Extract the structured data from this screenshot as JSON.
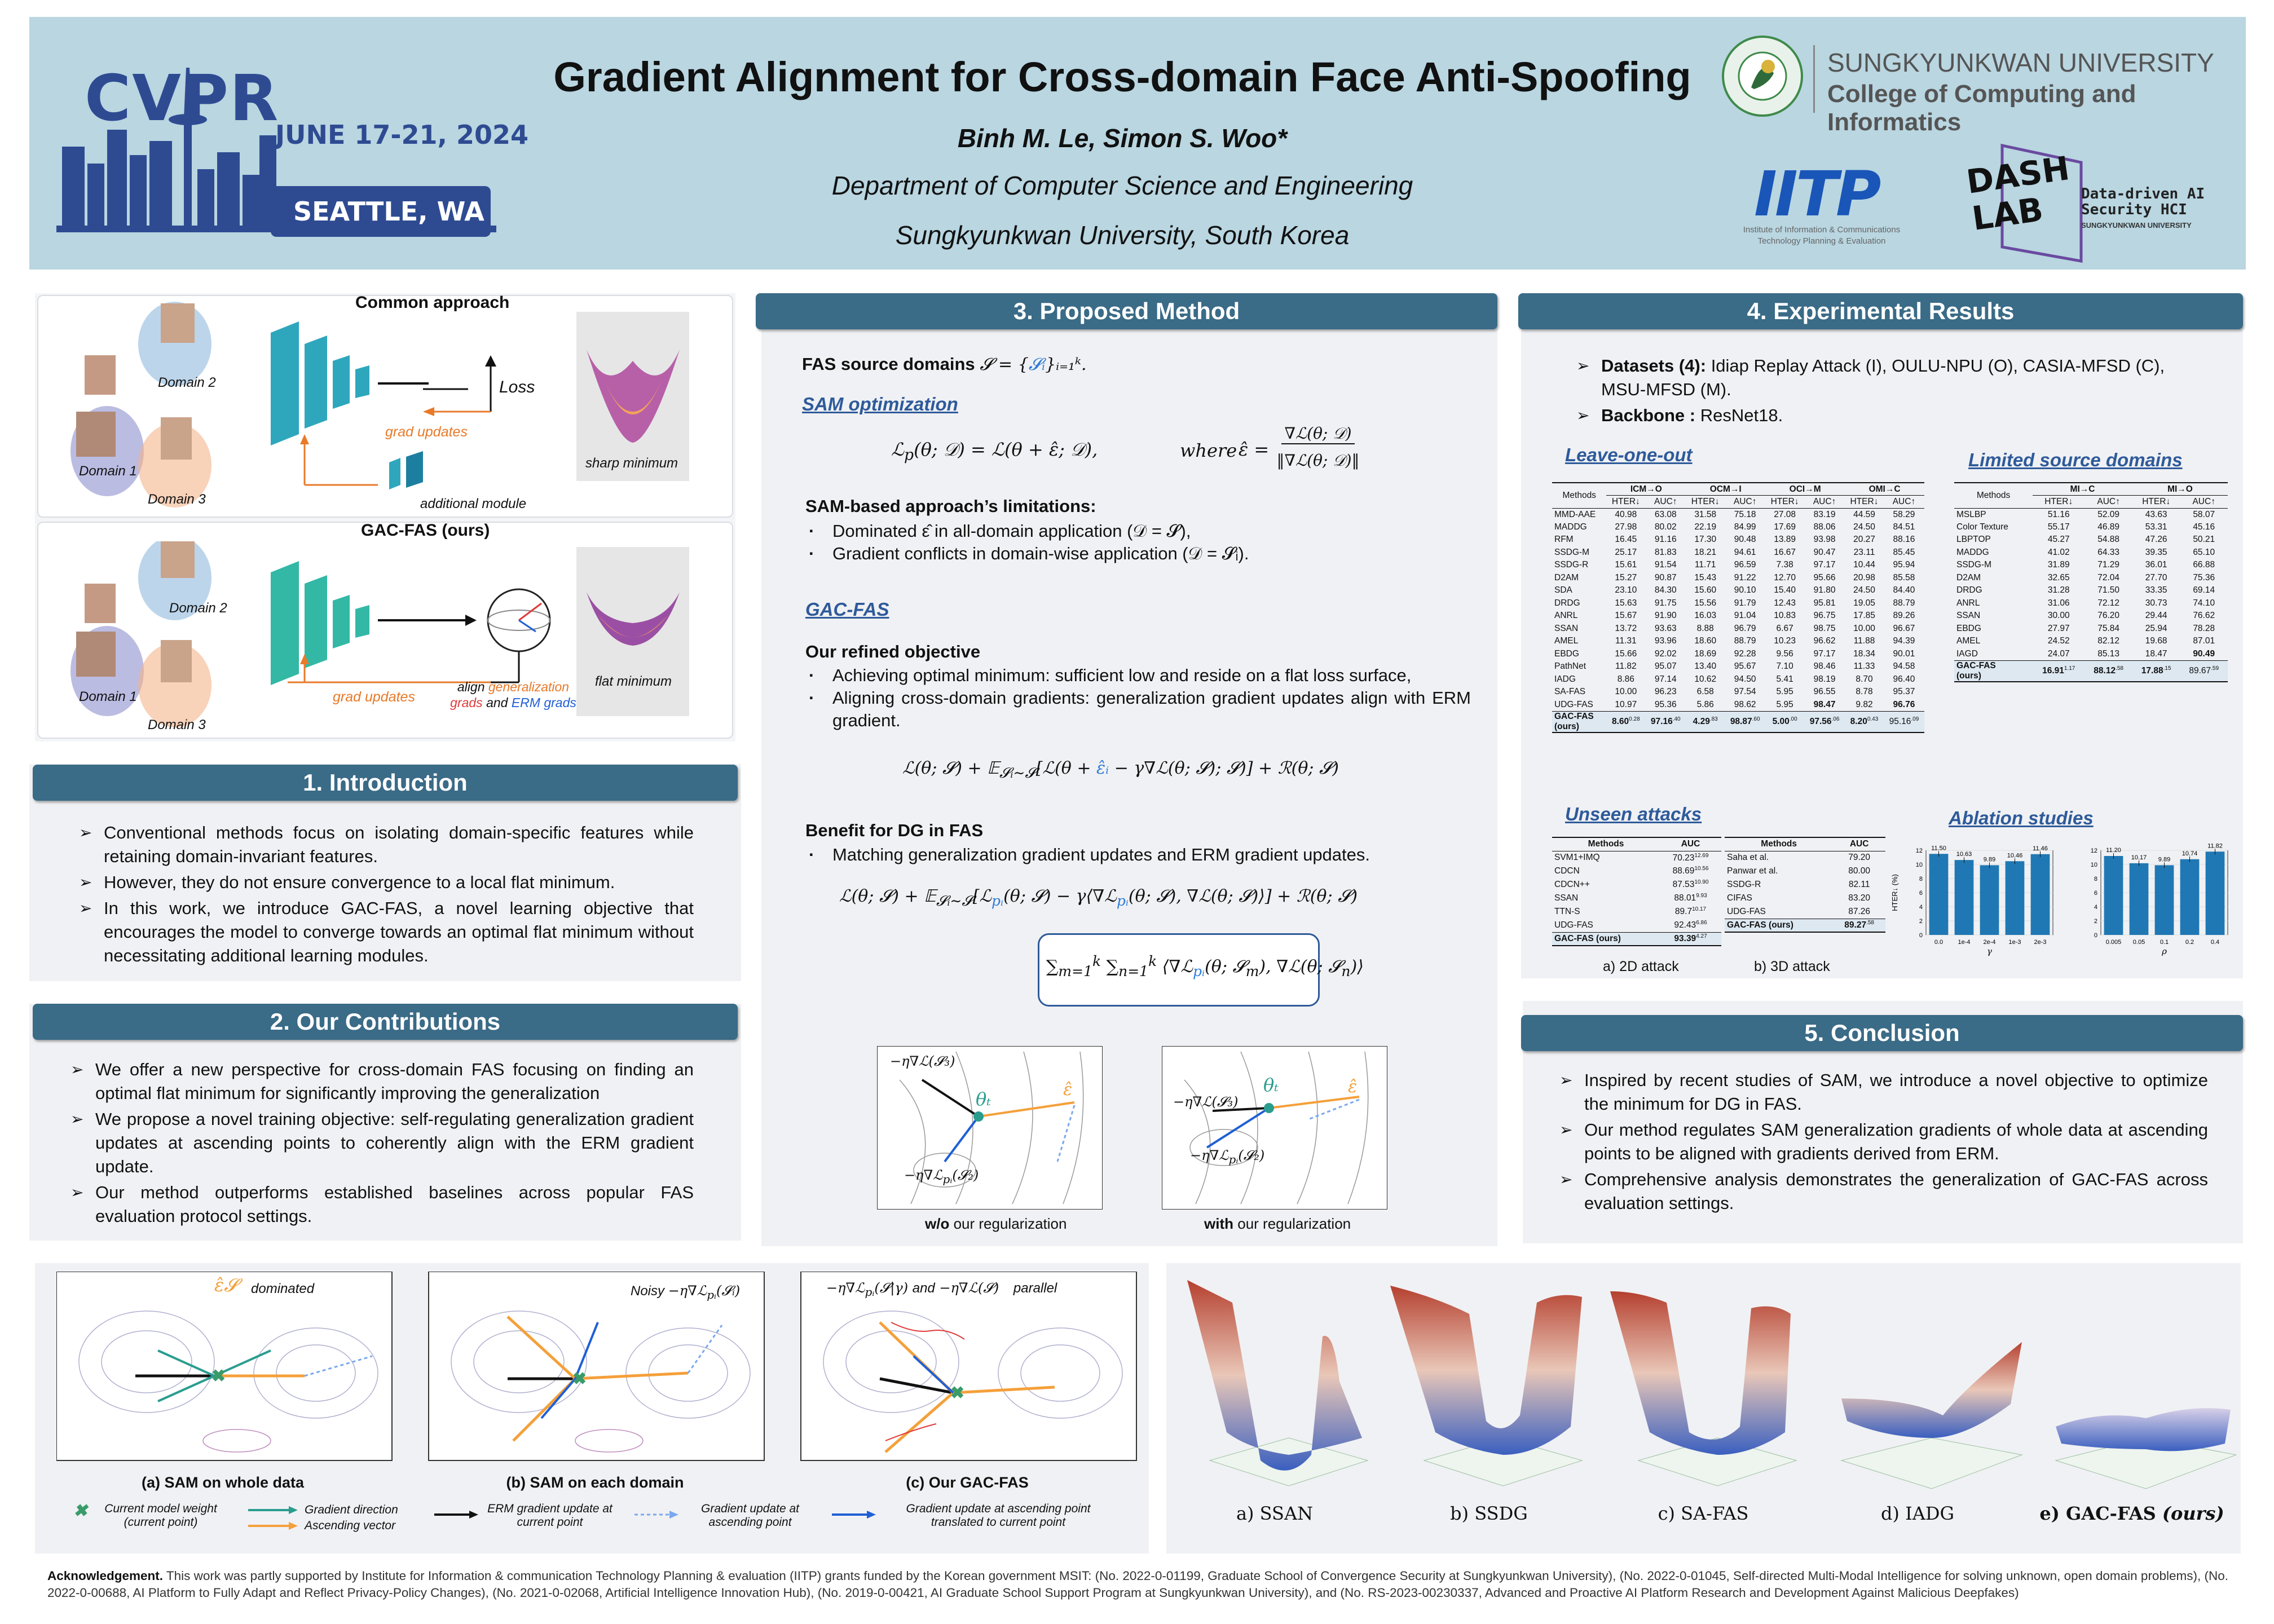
{
  "header": {
    "cvpr": "CVPR",
    "cvpr_dates": "JUNE 17-21, 2024",
    "cvpr_city": "SEATTLE, WA",
    "title": "Gradient Alignment for Cross-domain Face Anti-Spoofing",
    "authors": "Binh M. Le, Simon S. Woo*",
    "department": "Department of Computer Science and Engineering",
    "university": "Sungkyunkwan University, South Korea",
    "skku_name": "SUNGKYUNKWAN UNIVERSITY",
    "skku_college": "College of Computing and Informatics",
    "iitp_logo": "IITP",
    "iitp_sub": "Institute of Information & Communications Technology Planning & Evaluation",
    "dash_logo": "DASH LAB",
    "dash_sub": "Data-driven AI Security HCI",
    "dash_sub2": "SUNGKYUNKWAN UNIVERSITY"
  },
  "overview": {
    "common_title": "Common approach",
    "ours_title": "GAC-FAS (ours)",
    "domain1": "Domain 1",
    "domain2": "Domain 2",
    "domain3": "Domain 3",
    "loss": "Loss",
    "grad_updates": "grad updates",
    "additional_module": "additional module",
    "sharp_minimum": "sharp minimum",
    "flat_minimum": "flat minimum",
    "align_prefix": "align",
    "align_gen": "generalization",
    "align_grads": "grads",
    "align_and": "and",
    "align_erm": "ERM grads"
  },
  "intro": {
    "heading": "1. Introduction",
    "bullets": [
      "Conventional methods focus on isolating domain-specific features while retaining domain-invariant features.",
      "However, they do not ensure convergence to a local flat minimum.",
      "In this work, we introduce GAC-FAS, a novel learning objective that encourages the model to converge towards an optimal flat minimum without necessitating additional learning modules."
    ]
  },
  "contrib": {
    "heading": "2. Our Contributions",
    "bullets": [
      "We offer a new perspective for cross-domain FAS focusing on finding an optimal flat minimum for significantly improving the generalization",
      "We propose a novel training objective: self-regulating generalization gradient updates at ascending points to coherently align with the ERM gradient update.",
      "Our method outperforms established baselines across popular FAS evaluation protocol settings."
    ]
  },
  "method": {
    "heading": "3. Proposed Method",
    "fas_source": "FAS source domains",
    "sam_opt": "SAM optimization",
    "where": "where",
    "limitations_head": "SAM-based approach’s limitations:",
    "limitations": [
      "Dominated ε̂ in all-domain application (𝒟 = 𝓢),",
      "Gradient conflicts in domain-wise application (𝒟 = 𝓢ᵢ)."
    ],
    "gacfas_head": "GAC-FAS",
    "refined_head": "Our refined objective",
    "refined": [
      "Achieving optimal minimum: sufficient low and reside on a flat loss surface,",
      "Aligning cross-domain gradients:  generalization gradient updates align with ERM gradient."
    ],
    "benefit_head": "Benefit for DG in FAS",
    "benefit": [
      "Matching generalization gradient updates and ERM gradient updates."
    ],
    "wo_reg": "w/o our regularization",
    "with_reg": "with our regularization",
    "wo_bold": "w/o",
    "with_bold": "with"
  },
  "results": {
    "heading": "4. Experimental Results",
    "datasets_label": "Datasets (4):",
    "datasets": "Idiap Replay Attack (I), OULU-NPU (O), CASIA-MFSD (C), MSU-MFSD (M).",
    "backbone_label": "Backbone :",
    "backbone": "ResNet18.",
    "loo_head": "Leave-one-out",
    "lsd_head": "Limited source domains",
    "unseen_head": "Unseen attacks",
    "ablation_head": "Ablation studies",
    "cap_2d": "a) 2D attack",
    "cap_3d": "b) 3D attack"
  },
  "loo_table": {
    "groups": [
      "ICM→O",
      "OCM→I",
      "OCI→M",
      "OMI→C"
    ],
    "methods_label": "Methods",
    "sub": [
      "HTER↓",
      "AUC↑"
    ],
    "rows": [
      [
        "MMD-AAE",
        "40.98",
        "63.08",
        "31.58",
        "75.18",
        "27.08",
        "83.19",
        "44.59",
        "58.29"
      ],
      [
        "MADDG",
        "27.98",
        "80.02",
        "22.19",
        "84.99",
        "17.69",
        "88.06",
        "24.50",
        "84.51"
      ],
      [
        "RFM",
        "16.45",
        "91.16",
        "17.30",
        "90.48",
        "13.89",
        "93.98",
        "20.27",
        "88.16"
      ],
      [
        "SSDG-M",
        "25.17",
        "81.83",
        "18.21",
        "94.61",
        "16.67",
        "90.47",
        "23.11",
        "85.45"
      ],
      [
        "SSDG-R",
        "15.61",
        "91.54",
        "11.71",
        "96.59",
        "7.38",
        "97.17",
        "10.44",
        "95.94"
      ],
      [
        "D2AM",
        "15.27",
        "90.87",
        "15.43",
        "91.22",
        "12.70",
        "95.66",
        "20.98",
        "85.58"
      ],
      [
        "SDA",
        "23.10",
        "84.30",
        "15.60",
        "90.10",
        "15.40",
        "91.80",
        "24.50",
        "84.40"
      ],
      [
        "DRDG",
        "15.63",
        "91.75",
        "15.56",
        "91.79",
        "12.43",
        "95.81",
        "19.05",
        "88.79"
      ],
      [
        "ANRL",
        "15.67",
        "91.90",
        "16.03",
        "91.04",
        "10.83",
        "96.75",
        "17.85",
        "89.26"
      ],
      [
        "SSAN",
        "13.72",
        "93.63",
        "8.88",
        "96.79",
        "6.67",
        "98.75",
        "10.00",
        "96.67"
      ],
      [
        "AMEL",
        "11.31",
        "93.96",
        "18.60",
        "88.79",
        "10.23",
        "96.62",
        "11.88",
        "94.39"
      ],
      [
        "EBDG",
        "15.66",
        "92.02",
        "18.69",
        "92.28",
        "9.56",
        "97.17",
        "18.34",
        "90.01"
      ],
      [
        "PathNet",
        "11.82",
        "95.07",
        "13.40",
        "95.67",
        "7.10",
        "98.46",
        "11.33",
        "94.58"
      ],
      [
        "IADG",
        "8.86",
        "97.14",
        "10.62",
        "94.50",
        "5.41",
        "98.19",
        "8.70",
        "96.40"
      ],
      [
        "SA-FAS",
        "10.00",
        "96.23",
        "6.58",
        "97.54",
        "5.95",
        "96.55",
        "8.78",
        "95.37"
      ],
      [
        "UDG-FAS",
        "10.97",
        "95.36",
        "5.86",
        "98.62",
        "5.95",
        "98.47",
        "9.82",
        "96.76"
      ]
    ],
    "ours_label1": "GAC-FAS",
    "ours_label2": "(ours)",
    "ours": [
      "8.60",
      "0.28",
      "97.16",
      ".40",
      "4.29",
      ".83",
      "98.87",
      ".60",
      "5.00",
      ".00",
      "97.56",
      ".06",
      "8.20",
      "0.43",
      "95.16",
      ".09"
    ]
  },
  "lsd_table": {
    "groups": [
      "MI→C",
      "MI→O"
    ],
    "methods_label": "Methods",
    "sub": [
      "HTER↓",
      "AUC↑"
    ],
    "rows": [
      [
        "MSLBP",
        "51.16",
        "52.09",
        "43.63",
        "58.07"
      ],
      [
        "Color Texture",
        "55.17",
        "46.89",
        "53.31",
        "45.16"
      ],
      [
        "LBPTOP",
        "45.27",
        "54.88",
        "47.26",
        "50.21"
      ],
      [
        "MADDG",
        "41.02",
        "64.33",
        "39.35",
        "65.10"
      ],
      [
        "SSDG-M",
        "31.89",
        "71.29",
        "36.01",
        "66.88"
      ],
      [
        "D2AM",
        "32.65",
        "72.04",
        "27.70",
        "75.36"
      ],
      [
        "DRDG",
        "31.28",
        "71.50",
        "33.35",
        "69.14"
      ],
      [
        "ANRL",
        "31.06",
        "72.12",
        "30.73",
        "74.10"
      ],
      [
        "SSAN",
        "30.00",
        "76.20",
        "29.44",
        "76.62"
      ],
      [
        "EBDG",
        "27.97",
        "75.84",
        "25.94",
        "78.28"
      ],
      [
        "AMEL",
        "24.52",
        "82.12",
        "19.68",
        "87.01"
      ],
      [
        "IAGD",
        "24.07",
        "85.13",
        "18.47",
        "90.49"
      ]
    ],
    "ours_label1": "GAC-FAS",
    "ours_label2": "(ours)",
    "ours": [
      "16.91",
      "1.17",
      "88.12",
      ".58",
      "17.88",
      ".15",
      "89.67",
      ".59"
    ]
  },
  "attack2d": {
    "header": [
      "Methods",
      "AUC"
    ],
    "rows": [
      [
        "SVM1+IMQ",
        "70.23",
        "12.69"
      ],
      [
        "CDCN",
        "88.69",
        "10.56"
      ],
      [
        "CDCN++",
        "87.53",
        "10.90"
      ],
      [
        "SSAN",
        "88.01",
        "9.93"
      ],
      [
        "TTN-S",
        "89.7",
        "10.17"
      ],
      [
        "UDG-FAS",
        "92.43",
        "6.86"
      ]
    ],
    "ours": [
      "GAC-FAS (ours)",
      "93.39",
      "4.27"
    ]
  },
  "attack3d": {
    "header": [
      "Methods",
      "AUC"
    ],
    "rows": [
      [
        "Saha et al.",
        "79.20"
      ],
      [
        "Panwar et al.",
        "80.00"
      ],
      [
        "SSDG-R",
        "82.11"
      ],
      [
        "CIFAS",
        "83.20"
      ],
      [
        "UDG-FAS",
        "87.26"
      ]
    ],
    "ours": [
      "GAC-FAS (ours)",
      "89.27",
      ".58"
    ]
  },
  "chart_data": [
    {
      "type": "bar",
      "ylabel": "HTER↓ (%)",
      "xlabel": "γ",
      "categories": [
        "0.0",
        "1e-4",
        "2e-4",
        "1e-3",
        "2e-3"
      ],
      "values": [
        11.5,
        10.63,
        9.89,
        10.46,
        11.46
      ],
      "ylim": [
        0,
        12
      ],
      "yticks": [
        "0",
        "2",
        "4",
        "6",
        "8",
        "10",
        "12"
      ],
      "color": "#1f78b4"
    },
    {
      "type": "bar",
      "ylabel": "",
      "xlabel": "ρ",
      "categories": [
        "0.005",
        "0.05",
        "0.1",
        "0.2",
        "0.4"
      ],
      "values": [
        11.2,
        10.17,
        9.89,
        10.74,
        11.82
      ],
      "ylim": [
        0,
        12
      ],
      "yticks": [
        "0",
        "2",
        "4",
        "6",
        "8",
        "10",
        "12"
      ],
      "color": "#1f78b4"
    }
  ],
  "conclusion": {
    "heading": "5. Conclusion",
    "bullets": [
      "Inspired by recent studies of SAM, we introduce a novel objective to optimize the minimum for DG in FAS.",
      "Our method regulates SAM generalization gradients of whole data at ascending points to be aligned with gradients derived from ERM.",
      "Comprehensive analysis demonstrates the generalization of GAC-FAS across evaluation settings."
    ]
  },
  "bottom_fig": {
    "cap_a": "(a) SAM on whole data",
    "cap_b": "(b) SAM on each domain",
    "cap_c": "(c) Our GAC-FAS",
    "dominated": "dominated",
    "noisy": "Noisy",
    "and": "and",
    "parallel": "parallel",
    "legend": [
      "Current model weight (current point)",
      "Gradient direction",
      "Ascending vector",
      "ERM gradient update at current point",
      "Gradient update at ascending point",
      "Gradient update at ascending point translated to current point"
    ],
    "colors": {
      "teal": "#2a9d8f",
      "orange": "#f4a03a",
      "blue": "#1f5fd6",
      "green": "#3a9b6a"
    }
  },
  "surfaces": {
    "captions": [
      "a) SSAN",
      "b) SSDG",
      "c) SA-FAS",
      "d) IADG"
    ],
    "ours_caption": "e) GAC-FAS",
    "ours_suffix": "(ours)"
  },
  "ack": {
    "label": "Acknowledgement.",
    "text": "This work was partly supported by Institute for Information & communication Technology Planning & evaluation (IITP) grants funded by the Korean government MSIT: (No. 2022-0-01199, Graduate School of Convergence Security at Sungkyunkwan University), (No. 2022-0-01045, Self-directed Multi-Modal Intelligence for solving unknown, open domain problems), (No. 2022-0-00688, AI Platform to Fully Adapt and Reflect Privacy-Policy Changes), (No. 2021-0-02068, Artificial Intelligence Innovation Hub), (No. 2019-0-00421, AI Graduate School Support Program at Sungkyunkwan University), and (No. RS-2023-00230337, Advanced and Proactive AI Platform Research and Development Against Malicious Deepfakes)"
  }
}
